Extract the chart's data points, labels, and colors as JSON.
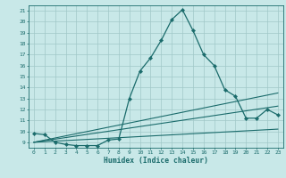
{
  "title": "",
  "xlabel": "Humidex (Indice chaleur)",
  "xlim": [
    -0.5,
    23.5
  ],
  "ylim": [
    8.5,
    21.5
  ],
  "xticks": [
    0,
    1,
    2,
    3,
    4,
    5,
    6,
    7,
    8,
    9,
    10,
    11,
    12,
    13,
    14,
    15,
    16,
    17,
    18,
    19,
    20,
    21,
    22,
    23
  ],
  "yticks": [
    9,
    10,
    11,
    12,
    13,
    14,
    15,
    16,
    17,
    18,
    19,
    20,
    21
  ],
  "bg_color": "#c8e8e8",
  "line_color": "#1a6b6b",
  "grid_color": "#a0c8c8",
  "main_series": {
    "x": [
      0,
      1,
      2,
      3,
      4,
      5,
      6,
      7,
      8,
      9,
      10,
      11,
      12,
      13,
      14,
      15,
      16,
      17,
      18,
      19,
      20,
      21,
      22,
      23
    ],
    "y": [
      9.8,
      9.7,
      9.0,
      8.8,
      8.7,
      8.7,
      8.7,
      9.2,
      9.3,
      13.0,
      15.5,
      16.7,
      18.3,
      20.2,
      21.1,
      19.2,
      17.0,
      16.0,
      13.8,
      13.2,
      11.2,
      11.2,
      12.0,
      11.5
    ]
  },
  "trend_lines": [
    {
      "x": [
        0,
        23
      ],
      "y": [
        9.0,
        13.5
      ]
    },
    {
      "x": [
        0,
        23
      ],
      "y": [
        9.0,
        12.3
      ]
    },
    {
      "x": [
        0,
        23
      ],
      "y": [
        9.0,
        10.2
      ]
    }
  ]
}
